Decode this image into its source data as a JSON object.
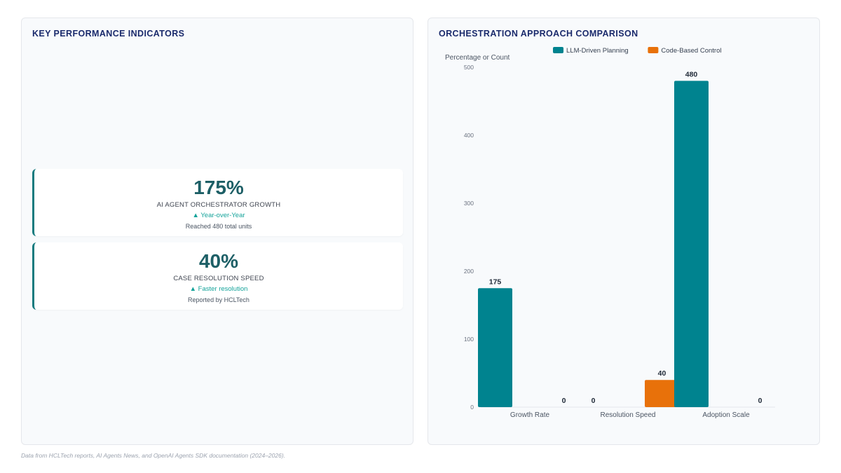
{
  "kpi_panel": {
    "title": "KEY PERFORMANCE INDICATORS",
    "cards": [
      {
        "value": "175%",
        "label": "AI AGENT ORCHESTRATOR GROWTH",
        "trend": "▲ Year-over-Year",
        "note": "Reached 480 total units"
      },
      {
        "value": "40%",
        "label": "CASE RESOLUTION SPEED",
        "trend": "▲ Faster resolution",
        "note": "Reported by HCLTech"
      }
    ]
  },
  "chart_panel": {
    "title": "ORCHESTRATION APPROACH COMPARISON"
  },
  "chart_data": {
    "type": "bar",
    "categories": [
      "Growth Rate",
      "Resolution Speed",
      "Adoption Scale"
    ],
    "series": [
      {
        "name": "LLM-Driven Planning",
        "values": [
          175,
          0,
          480
        ],
        "color": "#00838f"
      },
      {
        "name": "Code-Based Control",
        "values": [
          0,
          40,
          0
        ],
        "color": "#e8710a"
      }
    ],
    "ylabel": "Percentage or Count",
    "ylim": [
      0,
      500
    ],
    "yticks": [
      0,
      100,
      200,
      300,
      400,
      500
    ],
    "legend_position": "top",
    "grid": false
  },
  "footnote": "Data from HCLTech reports, AI Agents News, and OpenAI Agents SDK documentation (2024–2026)."
}
